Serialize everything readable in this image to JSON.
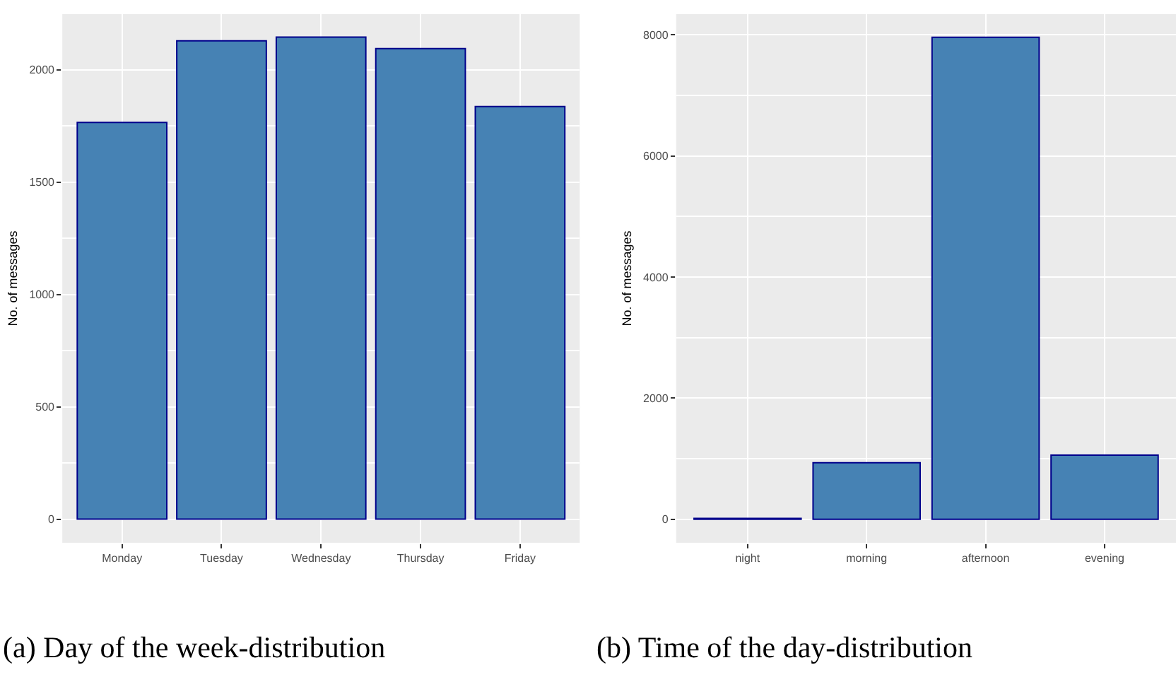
{
  "chart_data": [
    {
      "type": "bar",
      "title": "(a) Day of the week-distribution",
      "ylabel": "No. of messages",
      "categories": [
        "Monday",
        "Tuesday",
        "Wednesday",
        "Thursday",
        "Friday"
      ],
      "values": [
        1765,
        2128,
        2145,
        2094,
        1836
      ],
      "color": "#4682b4",
      "ylim": [
        -105,
        2247
      ],
      "yticks": [
        0,
        500,
        1000,
        1500,
        2000
      ],
      "grid": true
    },
    {
      "type": "bar",
      "title": "(b) Time of the day-distribution",
      "ylabel": "No. of messages",
      "categories": [
        "night",
        "morning",
        "afternoon",
        "evening"
      ],
      "values": [
        15,
        934,
        7961,
        1058
      ],
      "color": "#4682b4",
      "ylim": [
        -389,
        8342
      ],
      "yticks": [
        0,
        2000,
        4000,
        6000,
        8000
      ],
      "grid": true
    }
  ]
}
